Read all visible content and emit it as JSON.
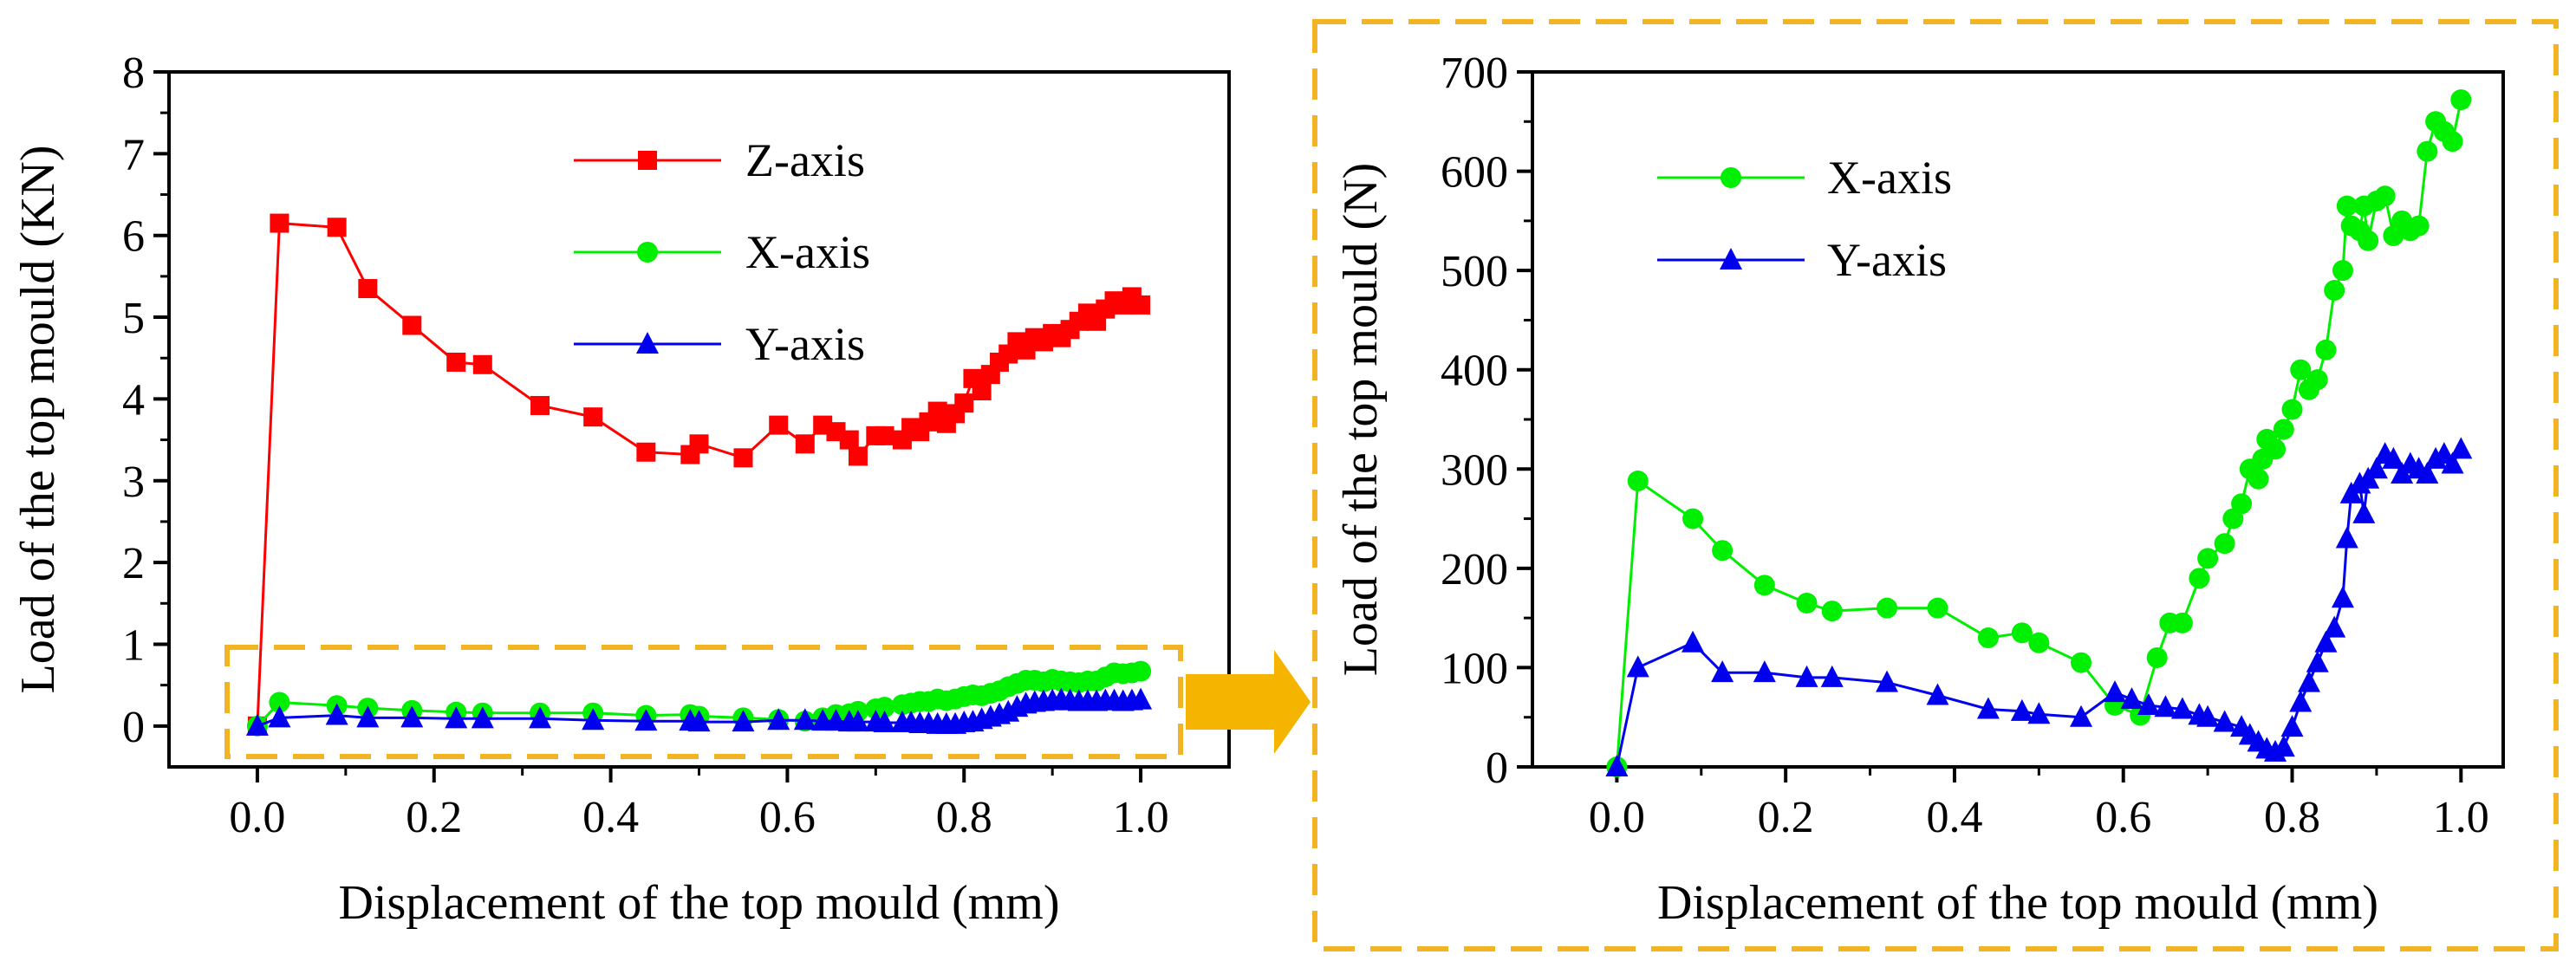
{
  "chart_data": [
    {
      "type": "line",
      "title": "",
      "xlabel": "Displacement of the top mould (mm)",
      "ylabel": "Load of the top mould (KN)",
      "xlim": [
        -0.1,
        1.1
      ],
      "ylim": [
        -0.5,
        8
      ],
      "xticks": [
        0.0,
        0.2,
        0.4,
        0.6,
        0.8,
        1.0
      ],
      "xtick_labels": [
        "0.0",
        "0.2",
        "0.4",
        "0.6",
        "0.8",
        "1.0"
      ],
      "yticks": [
        0,
        1,
        2,
        3,
        4,
        5,
        6,
        7,
        8
      ],
      "ytick_labels": [
        "0",
        "1",
        "2",
        "3",
        "4",
        "5",
        "6",
        "7",
        "8"
      ],
      "legend_position": "top-right",
      "series": [
        {
          "name": "Z-axis",
          "color": "#ff0000",
          "marker": "square",
          "x": [
            0,
            0.025,
            0.09,
            0.125,
            0.175,
            0.225,
            0.255,
            0.32,
            0.38,
            0.44,
            0.49,
            0.5,
            0.55,
            0.59,
            0.62,
            0.64,
            0.655,
            0.67,
            0.68,
            0.7,
            0.71,
            0.73,
            0.74,
            0.75,
            0.76,
            0.77,
            0.78,
            0.79,
            0.8,
            0.81,
            0.82,
            0.83,
            0.84,
            0.85,
            0.86,
            0.87,
            0.88,
            0.89,
            0.9,
            0.91,
            0.92,
            0.93,
            0.94,
            0.95,
            0.96,
            0.97,
            0.98,
            0.99,
            1.0
          ],
          "y": [
            0,
            6.15,
            6.1,
            5.35,
            4.9,
            4.45,
            4.42,
            3.92,
            3.78,
            3.35,
            3.32,
            3.45,
            3.28,
            3.68,
            3.45,
            3.68,
            3.6,
            3.5,
            3.3,
            3.55,
            3.55,
            3.5,
            3.65,
            3.6,
            3.72,
            3.85,
            3.7,
            3.82,
            3.95,
            4.25,
            4.1,
            4.3,
            4.45,
            4.55,
            4.7,
            4.6,
            4.75,
            4.7,
            4.8,
            4.75,
            4.85,
            4.95,
            5.05,
            4.95,
            5.1,
            5.2,
            5.15,
            5.25,
            5.15
          ]
        },
        {
          "name": "X-axis",
          "color": "#00ee00",
          "marker": "circle",
          "x": [
            0,
            0.025,
            0.09,
            0.125,
            0.175,
            0.225,
            0.255,
            0.32,
            0.38,
            0.44,
            0.49,
            0.5,
            0.55,
            0.59,
            0.62,
            0.64,
            0.655,
            0.67,
            0.68,
            0.7,
            0.71,
            0.73,
            0.74,
            0.75,
            0.76,
            0.77,
            0.78,
            0.79,
            0.8,
            0.81,
            0.82,
            0.83,
            0.84,
            0.85,
            0.86,
            0.87,
            0.88,
            0.89,
            0.9,
            0.91,
            0.92,
            0.93,
            0.94,
            0.95,
            0.96,
            0.97,
            0.98,
            0.99,
            1.0
          ],
          "y": [
            0,
            0.29,
            0.25,
            0.22,
            0.19,
            0.17,
            0.16,
            0.16,
            0.16,
            0.13,
            0.14,
            0.12,
            0.1,
            0.08,
            0.06,
            0.1,
            0.14,
            0.15,
            0.18,
            0.21,
            0.23,
            0.26,
            0.28,
            0.3,
            0.3,
            0.33,
            0.31,
            0.33,
            0.36,
            0.38,
            0.37,
            0.4,
            0.43,
            0.48,
            0.52,
            0.56,
            0.56,
            0.54,
            0.57,
            0.55,
            0.54,
            0.53,
            0.55,
            0.55,
            0.6,
            0.65,
            0.64,
            0.65,
            0.67
          ]
        },
        {
          "name": "Y-axis",
          "color": "#0000ee",
          "marker": "triangle",
          "x": [
            0,
            0.025,
            0.09,
            0.125,
            0.175,
            0.225,
            0.255,
            0.32,
            0.38,
            0.44,
            0.49,
            0.5,
            0.55,
            0.59,
            0.62,
            0.64,
            0.655,
            0.67,
            0.68,
            0.7,
            0.71,
            0.73,
            0.74,
            0.75,
            0.76,
            0.77,
            0.78,
            0.79,
            0.8,
            0.81,
            0.82,
            0.83,
            0.84,
            0.85,
            0.86,
            0.87,
            0.88,
            0.89,
            0.9,
            0.91,
            0.92,
            0.93,
            0.94,
            0.95,
            0.96,
            0.97,
            0.98,
            0.99,
            1.0
          ],
          "y": [
            0,
            0.1,
            0.13,
            0.1,
            0.1,
            0.09,
            0.09,
            0.09,
            0.07,
            0.06,
            0.06,
            0.05,
            0.05,
            0.07,
            0.07,
            0.06,
            0.06,
            0.05,
            0.05,
            0.05,
            0.04,
            0.04,
            0.04,
            0.03,
            0.03,
            0.02,
            0.02,
            0.02,
            0.04,
            0.05,
            0.08,
            0.11,
            0.14,
            0.17,
            0.23,
            0.27,
            0.29,
            0.3,
            0.31,
            0.32,
            0.31,
            0.3,
            0.3,
            0.3,
            0.31,
            0.31,
            0.3,
            0.31,
            0.32
          ]
        }
      ]
    },
    {
      "type": "line",
      "title": "",
      "xlabel": "Displacement of the top mould (mm)",
      "ylabel": "Load of the top mould (N)",
      "xlim": [
        -0.1,
        1.05
      ],
      "ylim": [
        0,
        700
      ],
      "xticks": [
        0.0,
        0.2,
        0.4,
        0.6,
        0.8,
        1.0
      ],
      "xtick_labels": [
        "0.0",
        "0.2",
        "0.4",
        "0.6",
        "0.8",
        "1.0"
      ],
      "yticks": [
        0,
        100,
        200,
        300,
        400,
        500,
        600,
        700
      ],
      "ytick_labels": [
        "0",
        "100",
        "200",
        "300",
        "400",
        "500",
        "600",
        "700"
      ],
      "legend_position": "top-left",
      "series": [
        {
          "name": "X-axis",
          "color": "#00ee00",
          "marker": "circle",
          "x": [
            0,
            0.025,
            0.09,
            0.125,
            0.175,
            0.225,
            0.255,
            0.32,
            0.38,
            0.44,
            0.48,
            0.5,
            0.55,
            0.59,
            0.62,
            0.64,
            0.655,
            0.67,
            0.69,
            0.7,
            0.72,
            0.73,
            0.74,
            0.75,
            0.76,
            0.765,
            0.77,
            0.78,
            0.79,
            0.8,
            0.81,
            0.82,
            0.83,
            0.84,
            0.85,
            0.86,
            0.865,
            0.87,
            0.88,
            0.885,
            0.89,
            0.9,
            0.91,
            0.92,
            0.93,
            0.94,
            0.95,
            0.96,
            0.97,
            0.98,
            0.99,
            1.0
          ],
          "y": [
            0,
            288,
            250,
            218,
            183,
            165,
            157,
            160,
            160,
            130,
            135,
            125,
            105,
            62,
            52,
            110,
            145,
            145,
            190,
            210,
            225,
            250,
            265,
            300,
            290,
            310,
            330,
            320,
            340,
            360,
            400,
            380,
            390,
            420,
            480,
            500,
            565,
            545,
            540,
            565,
            530,
            570,
            575,
            535,
            550,
            540,
            545,
            620,
            650,
            640,
            630,
            672
          ]
        },
        {
          "name": "Y-axis",
          "color": "#0000ee",
          "marker": "triangle",
          "x": [
            0,
            0.025,
            0.09,
            0.125,
            0.175,
            0.225,
            0.255,
            0.32,
            0.38,
            0.44,
            0.48,
            0.5,
            0.55,
            0.59,
            0.61,
            0.63,
            0.65,
            0.67,
            0.69,
            0.7,
            0.72,
            0.74,
            0.75,
            0.76,
            0.77,
            0.78,
            0.79,
            0.8,
            0.81,
            0.82,
            0.83,
            0.84,
            0.85,
            0.86,
            0.865,
            0.87,
            0.88,
            0.885,
            0.89,
            0.9,
            0.91,
            0.92,
            0.93,
            0.94,
            0.95,
            0.96,
            0.97,
            0.98,
            0.99,
            1.0
          ],
          "y": [
            0,
            100,
            125,
            95,
            95,
            90,
            90,
            85,
            72,
            58,
            56,
            53,
            50,
            75,
            68,
            62,
            60,
            58,
            52,
            50,
            45,
            40,
            32,
            25,
            18,
            15,
            20,
            40,
            65,
            85,
            105,
            125,
            140,
            170,
            230,
            275,
            285,
            255,
            290,
            300,
            315,
            310,
            295,
            305,
            300,
            295,
            310,
            315,
            305,
            320
          ]
        }
      ]
    }
  ]
}
